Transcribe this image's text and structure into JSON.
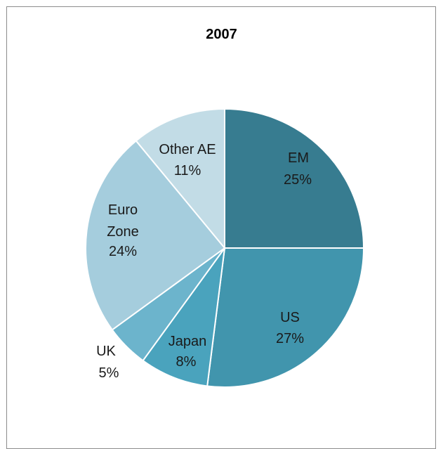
{
  "chart_data": {
    "type": "pie",
    "title": "2007",
    "slices": [
      {
        "label": "EM",
        "line1": "EM",
        "line2": "",
        "pct_text": "25%",
        "value": 25,
        "color": "#377c90"
      },
      {
        "label": "US",
        "line1": "US",
        "line2": "",
        "pct_text": "27%",
        "value": 27,
        "color": "#4195ad"
      },
      {
        "label": "Japan",
        "line1": "Japan",
        "line2": "",
        "pct_text": "8%",
        "value": 8,
        "color": "#4aa3bd"
      },
      {
        "label": "UK",
        "line1": "UK",
        "line2": "",
        "pct_text": "5%",
        "value": 5,
        "color": "#6cb4cc"
      },
      {
        "label": "Euro Zone",
        "line1": "Euro",
        "line2": "Zone",
        "pct_text": "24%",
        "value": 24,
        "color": "#a5cddd"
      },
      {
        "label": "Other AE",
        "line1": "Other AE",
        "line2": "",
        "pct_text": "11%",
        "value": 11,
        "color": "#c2dce6"
      }
    ]
  }
}
